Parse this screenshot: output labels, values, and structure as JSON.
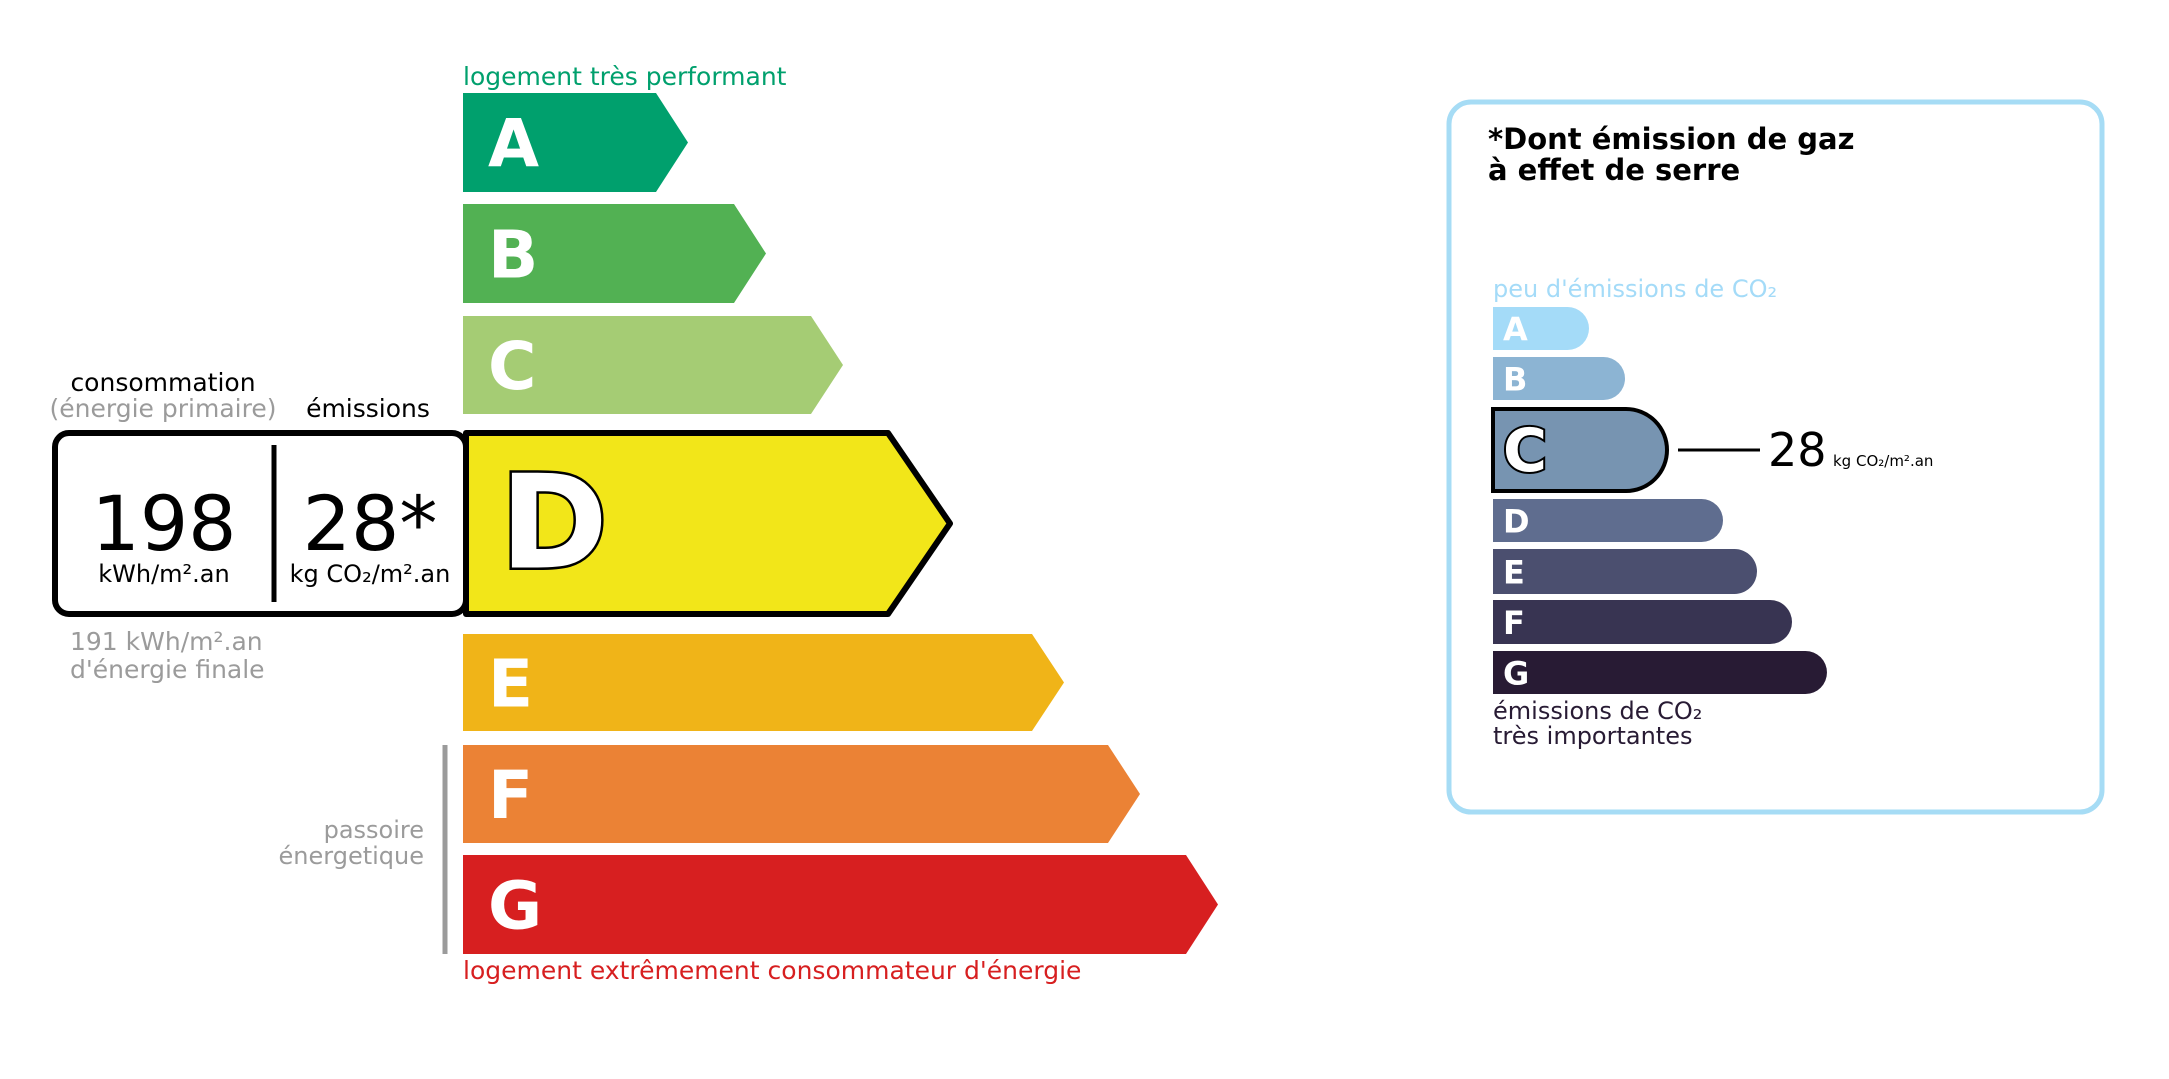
{
  "energy": {
    "top_label": "logement très performant",
    "bottom_label": "logement extrêmement consommateur d'énergie",
    "passoire_label": [
      "passoire",
      "énergetique"
    ],
    "classes": [
      {
        "letter": "A",
        "color": "#00a06d"
      },
      {
        "letter": "B",
        "color": "#52b153"
      },
      {
        "letter": "C",
        "color": "#a5cc74"
      },
      {
        "letter": "D",
        "color": "#f2e619"
      },
      {
        "letter": "E",
        "color": "#f0b418"
      },
      {
        "letter": "F",
        "color": "#eb8235"
      },
      {
        "letter": "G",
        "color": "#d71f20"
      }
    ],
    "current_class": "D",
    "consumption_header": "consommation",
    "consumption_subheader": "(énergie primaire)",
    "emissions_header": "émissions",
    "consumption_value": "198",
    "consumption_unit": "kWh/m².an",
    "emissions_value": "28*",
    "emissions_unit": "kg CO₂/m².an",
    "final_energy_line1": "191 kWh/m².an",
    "final_energy_line2": "d'énergie finale",
    "top_label_color": "#00a06d",
    "bottom_label_color": "#d71f20"
  },
  "ges": {
    "title_line1": "*Dont émission de gaz",
    "title_line2": "à effet de serre",
    "top_label": "peu d'émissions de CO₂",
    "bottom_label_line1": "émissions de CO₂",
    "bottom_label_line2": "très importantes",
    "classes": [
      {
        "letter": "A",
        "color": "#a4dbf8"
      },
      {
        "letter": "B",
        "color": "#8cb4d3"
      },
      {
        "letter": "C",
        "color": "#7794b1"
      },
      {
        "letter": "D",
        "color": "#5f6d8f"
      },
      {
        "letter": "E",
        "color": "#4b4f6f"
      },
      {
        "letter": "F",
        "color": "#383452"
      },
      {
        "letter": "G",
        "color": "#281b34"
      }
    ],
    "current_class": "C",
    "value": "28",
    "unit": "kg CO₂/m².an",
    "border_color": "#a6dcf5"
  }
}
